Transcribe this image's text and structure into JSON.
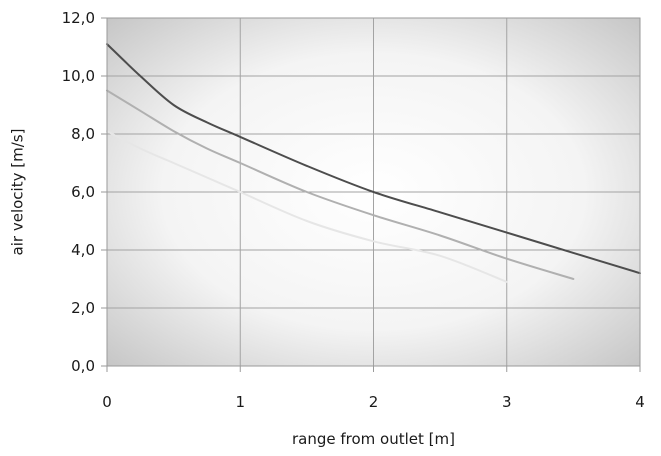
{
  "chart_data": {
    "type": "line",
    "xlabel": "range from outlet [m]",
    "ylabel": "air velocity [m/s]",
    "xlim": [
      0,
      4
    ],
    "ylim": [
      0,
      12
    ],
    "x_ticks": [
      "0",
      "1",
      "2",
      "3",
      "4"
    ],
    "y_ticks": [
      "0,0",
      "2,0",
      "4,0",
      "6,0",
      "8,0",
      "10,0",
      "12,0"
    ],
    "grid": true,
    "legend": "none",
    "background": "radial gradient, white center to gray edges",
    "series": [
      {
        "color": "#4d4d4d",
        "points": [
          [
            0,
            11.1
          ],
          [
            0.25,
            10.0
          ],
          [
            0.5,
            9.0
          ],
          [
            0.75,
            8.4
          ],
          [
            1.0,
            7.9
          ],
          [
            1.5,
            6.9
          ],
          [
            2.0,
            6.0
          ],
          [
            2.5,
            5.3
          ],
          [
            3.0,
            4.6
          ],
          [
            3.5,
            3.9
          ],
          [
            4.0,
            3.2
          ]
        ]
      },
      {
        "color": "#b0b0b0",
        "points": [
          [
            0,
            9.5
          ],
          [
            0.25,
            8.8
          ],
          [
            0.5,
            8.1
          ],
          [
            0.75,
            7.5
          ],
          [
            1.0,
            7.0
          ],
          [
            1.5,
            6.0
          ],
          [
            2.0,
            5.2
          ],
          [
            2.5,
            4.5
          ],
          [
            3.0,
            3.7
          ],
          [
            3.5,
            3.0
          ]
        ]
      },
      {
        "color": "#e6e6e6",
        "points": [
          [
            0,
            8.1
          ],
          [
            0.25,
            7.5
          ],
          [
            0.5,
            7.0
          ],
          [
            0.75,
            6.5
          ],
          [
            1.0,
            6.0
          ],
          [
            1.5,
            5.0
          ],
          [
            2.0,
            4.3
          ],
          [
            2.5,
            3.8
          ],
          [
            3.0,
            2.9
          ]
        ]
      }
    ]
  }
}
